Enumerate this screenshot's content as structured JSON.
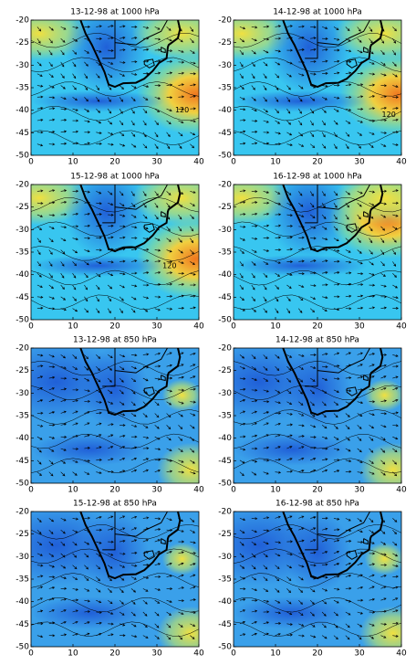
{
  "chart_data": [
    {
      "type": "map",
      "title": "13-12-98 at 1000 hPa",
      "xlim": [
        0,
        40
      ],
      "ylim": [
        -50,
        -20
      ],
      "xticks": [
        0,
        10,
        20,
        30,
        40
      ],
      "yticks": [
        -20,
        -25,
        -30,
        -35,
        -40,
        -45,
        -50
      ],
      "annotations": [
        {
          "text": "120",
          "x": 36,
          "y": -40
        }
      ]
    },
    {
      "type": "map",
      "title": "14-12-98 at 1000 hPa",
      "xlim": [
        0,
        40
      ],
      "ylim": [
        -50,
        -20
      ],
      "xticks": [
        0,
        10,
        20,
        30,
        40
      ],
      "yticks": [
        -20,
        -25,
        -30,
        -35,
        -40,
        -45,
        -50
      ],
      "annotations": [
        {
          "text": "120",
          "x": 37,
          "y": -41
        }
      ]
    },
    {
      "type": "map",
      "title": "15-12-98 at 1000 hPa",
      "xlim": [
        0,
        40
      ],
      "ylim": [
        -50,
        -20
      ],
      "xticks": [
        0,
        10,
        20,
        30,
        40
      ],
      "yticks": [
        -20,
        -25,
        -30,
        -35,
        -40,
        -45,
        -50
      ],
      "annotations": [
        {
          "text": "120",
          "x": 33,
          "y": -38
        }
      ]
    },
    {
      "type": "map",
      "title": "16-12-98 at 1000 hPa",
      "xlim": [
        0,
        40
      ],
      "ylim": [
        -50,
        -20
      ],
      "xticks": [
        0,
        10,
        20,
        30,
        40
      ],
      "yticks": [
        -20,
        -25,
        -30,
        -35,
        -40,
        -45,
        -50
      ]
    },
    {
      "type": "map",
      "title": "13-12-98 at 850 hPa",
      "xlim": [
        0,
        40
      ],
      "ylim": [
        -50,
        -20
      ],
      "xticks": [
        0,
        10,
        20,
        30,
        40
      ],
      "yticks": [
        -20,
        -25,
        -30,
        -35,
        -40,
        -45,
        -50
      ]
    },
    {
      "type": "map",
      "title": "14-12-98 at 850 hPa",
      "xlim": [
        0,
        40
      ],
      "ylim": [
        -50,
        -20
      ],
      "xticks": [
        0,
        10,
        20,
        30,
        40
      ],
      "yticks": [
        -20,
        -25,
        -30,
        -35,
        -40,
        -45,
        -50
      ]
    },
    {
      "type": "map",
      "title": "15-12-98 at 850 hPa",
      "xlim": [
        0,
        40
      ],
      "ylim": [
        -50,
        -20
      ],
      "xticks": [
        0,
        10,
        20,
        30,
        40
      ],
      "yticks": [
        -20,
        -25,
        -30,
        -35,
        -40,
        -45,
        -50
      ]
    },
    {
      "type": "map",
      "title": "16-12-98 at 850 hPa",
      "xlim": [
        0,
        40
      ],
      "ylim": [
        -50,
        -20
      ],
      "xticks": [
        0,
        10,
        20,
        30,
        40
      ],
      "yticks": [
        -20,
        -25,
        -30,
        -35,
        -40,
        -45,
        -50
      ]
    }
  ]
}
